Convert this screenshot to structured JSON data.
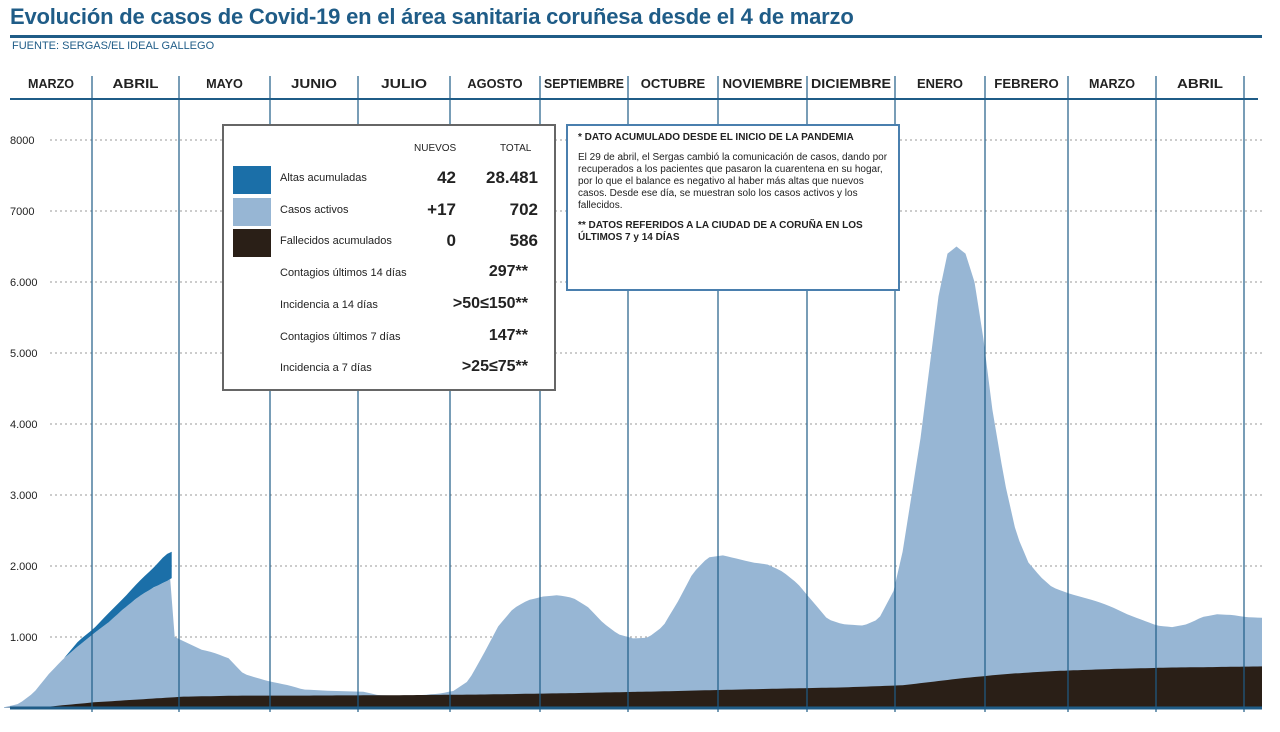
{
  "header": {
    "title": "Evolución de casos de Covid-19 en el área sanitaria coruñesa desde el 4 de marzo",
    "source": "FUENTE: SERGAS/EL IDEAL GALLEGO"
  },
  "colors": {
    "accent": "#1f5c87",
    "altas": "#1b6fa8",
    "activos": "#97b6d4",
    "fallecidos": "#2a1f17"
  },
  "legend": {
    "col_nuevos": "NUEVOS",
    "col_total": "TOTAL",
    "rows": [
      {
        "label": "Altas acumuladas",
        "nuevos": "42",
        "total": "28.481"
      },
      {
        "label": "Casos activos",
        "nuevos": "+17",
        "total": "702"
      },
      {
        "label": "Fallecidos acumulados",
        "nuevos": "0",
        "total": "586"
      }
    ],
    "extras": [
      {
        "label": "Contagios últimos 14 días",
        "value": "297**"
      },
      {
        "label": "Incidencia a 14 días",
        "value": ">50≤150**"
      },
      {
        "label": "Contagios últimos 7 días",
        "value": "147**"
      },
      {
        "label": "Incidencia a 7 días",
        "value": ">25≤75**"
      }
    ]
  },
  "notes": {
    "n1": "* DATO ACUMULADO DESDE EL INICIO DE LA PANDEMIA",
    "n2": "El 29 de abril, el Sergas cambió la comunicación de casos, dando por recuperados a los pacientes que pasaron la cuarentena en su hogar, por lo que el balance es negativo al haber más altas que nuevos casos. Desde ese día, se muestran solo los casos activos y los fallecidos.",
    "n3": "** DATOS REFERIDOS A LA CIUDAD DE A CORUÑA EN LOS ÚLTIMOS 7 y 14 DÍAS"
  },
  "chart_data": {
    "type": "area",
    "months": [
      "MARZO",
      "ABRIL",
      "MAYO",
      "JUNIO",
      "JULIO",
      "AGOSTO",
      "SEPTIEMBRE",
      "OCTUBRE",
      "NOVIEMBRE",
      "DICIEMBRE",
      "ENERO",
      "FEBRERO",
      "MARZO",
      "ABRIL"
    ],
    "y_ticks": [
      "8000",
      "7000",
      "6.000",
      "5.000",
      "4.000",
      "3.000",
      "2.000",
      "1.000"
    ],
    "y_tick_values": [
      8000,
      7000,
      6000,
      5000,
      4000,
      3000,
      2000,
      1000
    ],
    "ylim": [
      0,
      8300
    ],
    "x_unit": "days since 4 March 2020",
    "xlim": [
      0,
      420
    ],
    "series": [
      {
        "name": "Altas acumuladas",
        "points": [
          [
            20,
            700
          ],
          [
            25,
            950
          ],
          [
            30,
            1120
          ],
          [
            35,
            1340
          ],
          [
            40,
            1550
          ],
          [
            45,
            1780
          ],
          [
            50,
            1980
          ],
          [
            54,
            2160
          ],
          [
            56,
            2200
          ]
        ]
      },
      {
        "name": "Casos activos",
        "points": [
          [
            0,
            10
          ],
          [
            5,
            60
          ],
          [
            10,
            220
          ],
          [
            15,
            480
          ],
          [
            20,
            700
          ],
          [
            25,
            880
          ],
          [
            30,
            1050
          ],
          [
            35,
            1210
          ],
          [
            40,
            1400
          ],
          [
            45,
            1570
          ],
          [
            50,
            1700
          ],
          [
            55,
            1800
          ],
          [
            56,
            1830
          ],
          [
            57,
            1000
          ],
          [
            62,
            900
          ],
          [
            66,
            820
          ],
          [
            70,
            780
          ],
          [
            75,
            700
          ],
          [
            80,
            480
          ],
          [
            88,
            380
          ],
          [
            95,
            320
          ],
          [
            100,
            260
          ],
          [
            110,
            240
          ],
          [
            120,
            230
          ],
          [
            125,
            180
          ],
          [
            135,
            170
          ],
          [
            145,
            200
          ],
          [
            150,
            240
          ],
          [
            155,
            380
          ],
          [
            160,
            750
          ],
          [
            165,
            1150
          ],
          [
            170,
            1400
          ],
          [
            175,
            1520
          ],
          [
            180,
            1570
          ],
          [
            185,
            1590
          ],
          [
            190,
            1550
          ],
          [
            195,
            1420
          ],
          [
            200,
            1200
          ],
          [
            205,
            1040
          ],
          [
            210,
            980
          ],
          [
            215,
            990
          ],
          [
            220,
            1150
          ],
          [
            225,
            1500
          ],
          [
            230,
            1900
          ],
          [
            235,
            2120
          ],
          [
            240,
            2150
          ],
          [
            245,
            2100
          ],
          [
            250,
            2050
          ],
          [
            255,
            2020
          ],
          [
            260,
            1920
          ],
          [
            265,
            1750
          ],
          [
            270,
            1500
          ],
          [
            275,
            1250
          ],
          [
            280,
            1180
          ],
          [
            287,
            1160
          ],
          [
            292,
            1250
          ],
          [
            297,
            1650
          ],
          [
            300,
            2200
          ],
          [
            303,
            3000
          ],
          [
            306,
            3800
          ],
          [
            309,
            4800
          ],
          [
            312,
            5800
          ],
          [
            315,
            6400
          ],
          [
            318,
            6500
          ],
          [
            321,
            6400
          ],
          [
            324,
            6000
          ],
          [
            327,
            5200
          ],
          [
            330,
            4200
          ],
          [
            334,
            3200
          ],
          [
            338,
            2450
          ],
          [
            342,
            2050
          ],
          [
            346,
            1850
          ],
          [
            350,
            1700
          ],
          [
            355,
            1620
          ],
          [
            360,
            1560
          ],
          [
            365,
            1500
          ],
          [
            370,
            1420
          ],
          [
            375,
            1320
          ],
          [
            380,
            1240
          ],
          [
            385,
            1160
          ],
          [
            390,
            1140
          ],
          [
            395,
            1180
          ],
          [
            400,
            1280
          ],
          [
            405,
            1320
          ],
          [
            410,
            1310
          ],
          [
            415,
            1280
          ],
          [
            420,
            1270
          ]
        ]
      },
      {
        "name": "Fallecidos acumulados",
        "points": [
          [
            0,
            0
          ],
          [
            15,
            20
          ],
          [
            30,
            80
          ],
          [
            45,
            120
          ],
          [
            60,
            160
          ],
          [
            80,
            175
          ],
          [
            100,
            175
          ],
          [
            130,
            180
          ],
          [
            160,
            190
          ],
          [
            190,
            210
          ],
          [
            220,
            235
          ],
          [
            250,
            265
          ],
          [
            280,
            290
          ],
          [
            300,
            320
          ],
          [
            320,
            420
          ],
          [
            335,
            480
          ],
          [
            350,
            520
          ],
          [
            370,
            550
          ],
          [
            390,
            570
          ],
          [
            410,
            580
          ],
          [
            420,
            586
          ]
        ]
      }
    ]
  }
}
